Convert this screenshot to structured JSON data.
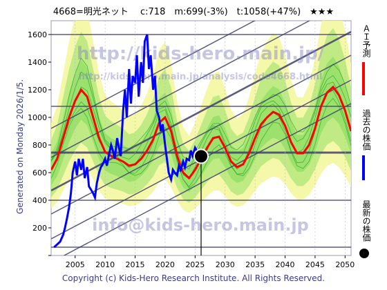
{
  "header": {
    "title": "4668=明光ネット　 c:718　m:699(-3%)　t:1058(+47%)　★★★"
  },
  "side_text": {
    "generated": "Generated on Monday 2026/1/5.",
    "copyright": "Copyright (c) Kids-Hero Research Institute. All Rights Reserved."
  },
  "watermarks": {
    "top": "http://kids-hero.main.jp/",
    "mid": "http://kids-hero.main.jp/analysis/code4668.html",
    "bottom": "info@kids-hero.main.jp"
  },
  "legend": {
    "ai_prediction": "ＡＩ予測",
    "past_price": "過去の株価",
    "latest_price": "最新の株価"
  },
  "colors": {
    "ai_line": "#ff0000",
    "past_line": "#0000ff",
    "band": "#7ed957",
    "band_light": "#f4f6a0",
    "grid_line": "#40406a"
  },
  "chart_data": {
    "type": "line",
    "xlim": [
      2001,
      2051
    ],
    "ylim": [
      0,
      1700
    ],
    "x_ticks": [
      2005,
      2010,
      2015,
      2020,
      2025,
      2030,
      2035,
      2040,
      2045,
      2050
    ],
    "y_ticks": [
      0,
      200,
      400,
      600,
      800,
      1000,
      1200,
      1400,
      1600
    ],
    "horizontal_levels": [
      60,
      400,
      745,
      1080,
      1600
    ],
    "latest_point": {
      "x": 2026.0,
      "y": 718
    },
    "latest_year_marker": 2026.0,
    "series": [
      {
        "key": "past",
        "x": [
          2001.5,
          2002.0,
          2002.5,
          2003.0,
          2003.3,
          2003.6,
          2004.0,
          2004.3,
          2004.6,
          2005.0,
          2005.3,
          2005.6,
          2006.0,
          2006.3,
          2006.6,
          2007.0,
          2007.3,
          2007.6,
          2008.0,
          2008.3,
          2008.6,
          2009.0,
          2009.3,
          2009.6,
          2010.0,
          2010.3,
          2010.6,
          2011.0,
          2011.3,
          2011.6,
          2012.0,
          2012.3,
          2012.6,
          2013.0,
          2013.3,
          2013.6,
          2014.0,
          2014.3,
          2014.6,
          2015.0,
          2015.3,
          2015.6,
          2016.0,
          2016.3,
          2016.6,
          2017.0,
          2017.3,
          2017.6,
          2018.0,
          2018.3,
          2018.6,
          2019.0,
          2019.3,
          2019.6,
          2020.0,
          2020.3,
          2020.6,
          2021.0,
          2021.3,
          2021.6,
          2022.0,
          2022.3,
          2022.6,
          2023.0,
          2023.3,
          2023.6,
          2024.0,
          2024.3,
          2024.6,
          2025.0,
          2025.5,
          2026.0
        ],
        "y": [
          60,
          80,
          100,
          150,
          200,
          260,
          350,
          450,
          600,
          680,
          580,
          700,
          620,
          700,
          560,
          640,
          500,
          480,
          450,
          420,
          520,
          600,
          640,
          660,
          700,
          650,
          720,
          800,
          760,
          700,
          850,
          780,
          720,
          1050,
          1200,
          1000,
          1350,
          1100,
          1300,
          1250,
          1450,
          1150,
          1400,
          1250,
          1550,
          1600,
          1350,
          1450,
          1200,
          1300,
          1050,
          1000,
          900,
          950,
          800,
          700,
          600,
          550,
          620,
          600,
          580,
          650,
          620,
          680,
          640,
          700,
          690,
          760,
          720,
          780,
          740,
          718
        ]
      },
      {
        "key": "ai",
        "x": [
          2001,
          2002,
          2003,
          2004,
          2005,
          2006,
          2007,
          2008,
          2009,
          2010,
          2011,
          2012,
          2013,
          2014,
          2015,
          2016,
          2017,
          2018,
          2019,
          2020,
          2021,
          2022,
          2023,
          2024,
          2025,
          2026,
          2027,
          2028,
          2029,
          2030,
          2031,
          2032,
          2033,
          2034,
          2035,
          2036,
          2037,
          2038,
          2039,
          2040,
          2041,
          2042,
          2043,
          2044,
          2045,
          2046,
          2047,
          2048,
          2049,
          2050,
          2051
        ],
        "y": [
          620,
          700,
          850,
          1000,
          1120,
          1200,
          1150,
          1000,
          850,
          750,
          720,
          700,
          680,
          650,
          660,
          700,
          760,
          840,
          960,
          1000,
          900,
          720,
          600,
          560,
          620,
          700,
          780,
          850,
          860,
          780,
          680,
          640,
          660,
          740,
          850,
          950,
          1000,
          1040,
          1020,
          940,
          820,
          740,
          740,
          800,
          920,
          1080,
          1180,
          1220,
          1160,
          1050,
          900
        ]
      }
    ]
  }
}
